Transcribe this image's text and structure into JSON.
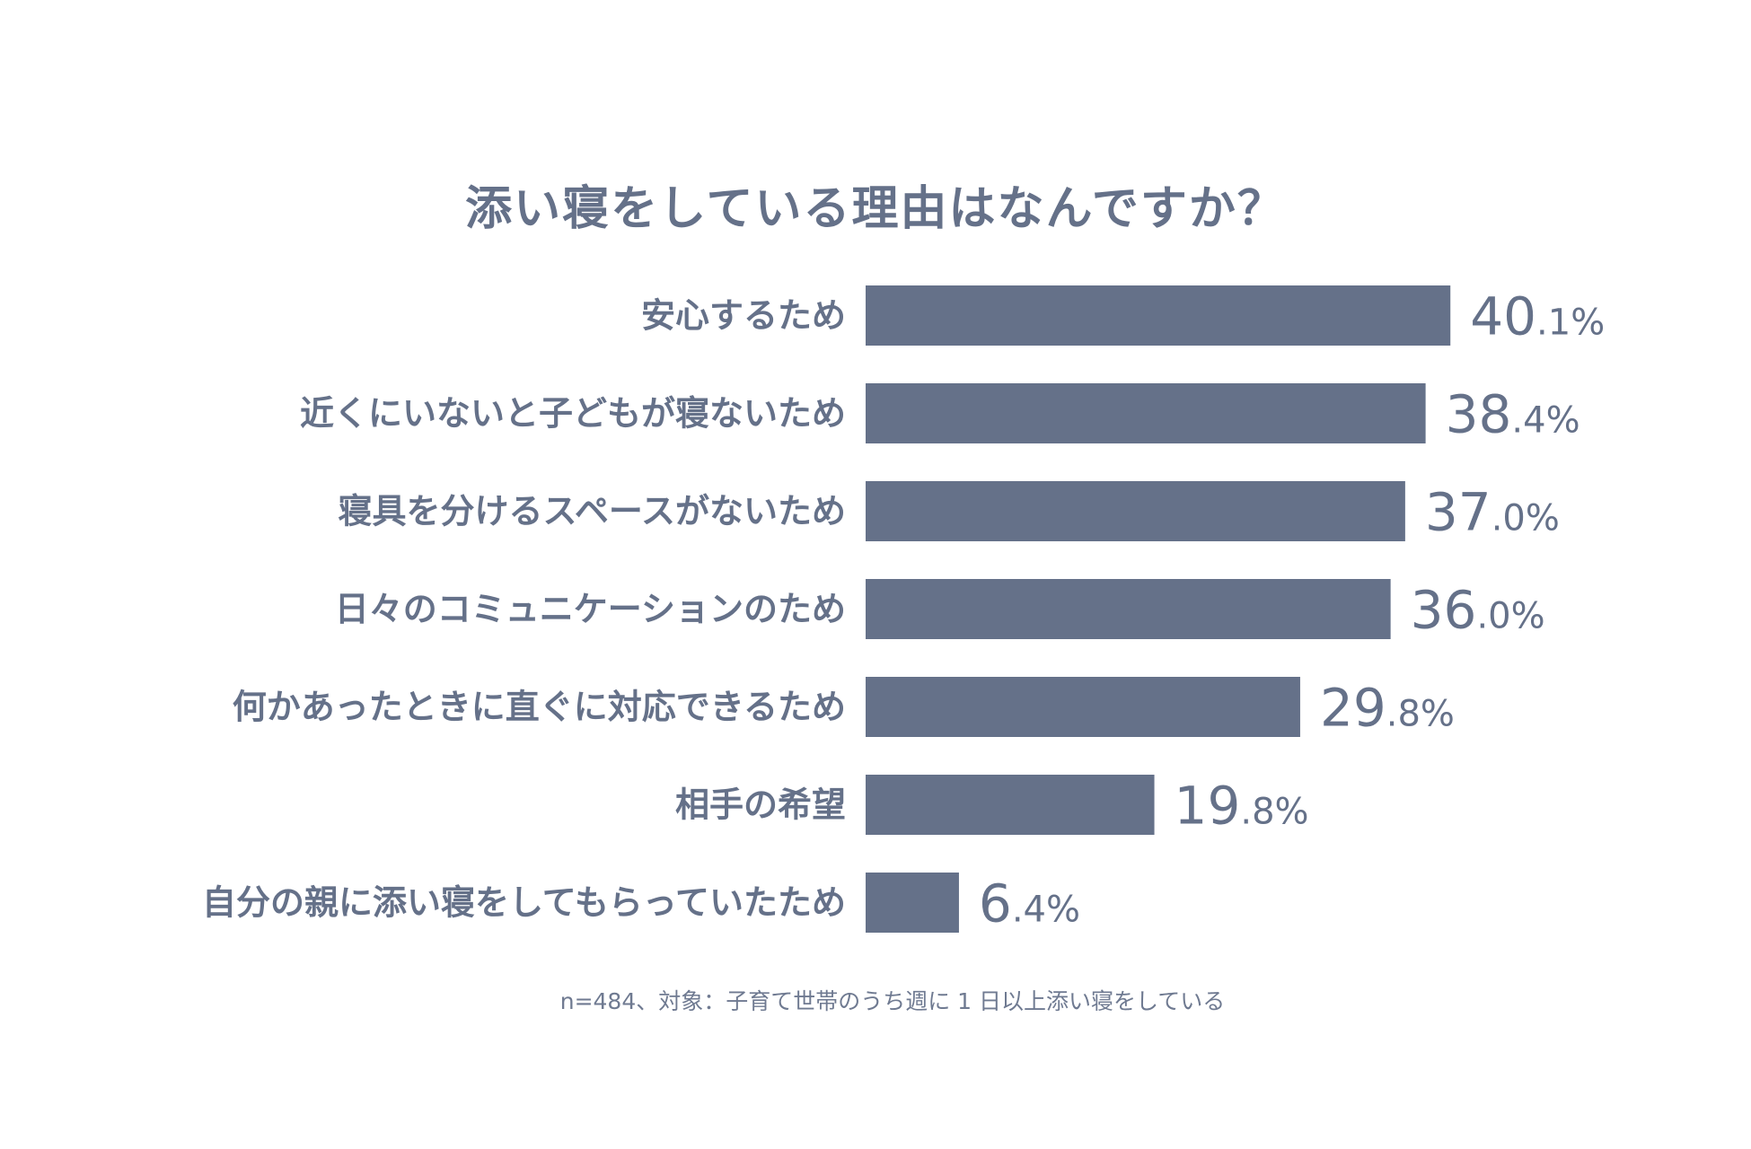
{
  "chart_data": {
    "type": "bar",
    "orientation": "horizontal",
    "title": "添い寝をしている理由はなんですか？",
    "categories": [
      "安心するため",
      "近くにいないと子どもが寝ないため",
      "寝具を分けるスペースがないため",
      "日々のコミュニケーションのため",
      "何かあったときに直ぐに対応できるため",
      "相手の希望",
      "自分の親に添い寝をしてもらっていたため"
    ],
    "values": [
      40.1,
      38.4,
      37.0,
      36.0,
      29.8,
      19.8,
      6.4
    ],
    "value_labels": [
      "40.1%",
      "38.4%",
      "37.0%",
      "36.0%",
      "29.8%",
      "19.8%",
      "6.4%"
    ],
    "unit": "%",
    "grid": false,
    "legend": "none",
    "bar_color": "#657189",
    "note": "n=484、対象：子育て世帯のうち週に 1 日以上添い寝をしている"
  }
}
